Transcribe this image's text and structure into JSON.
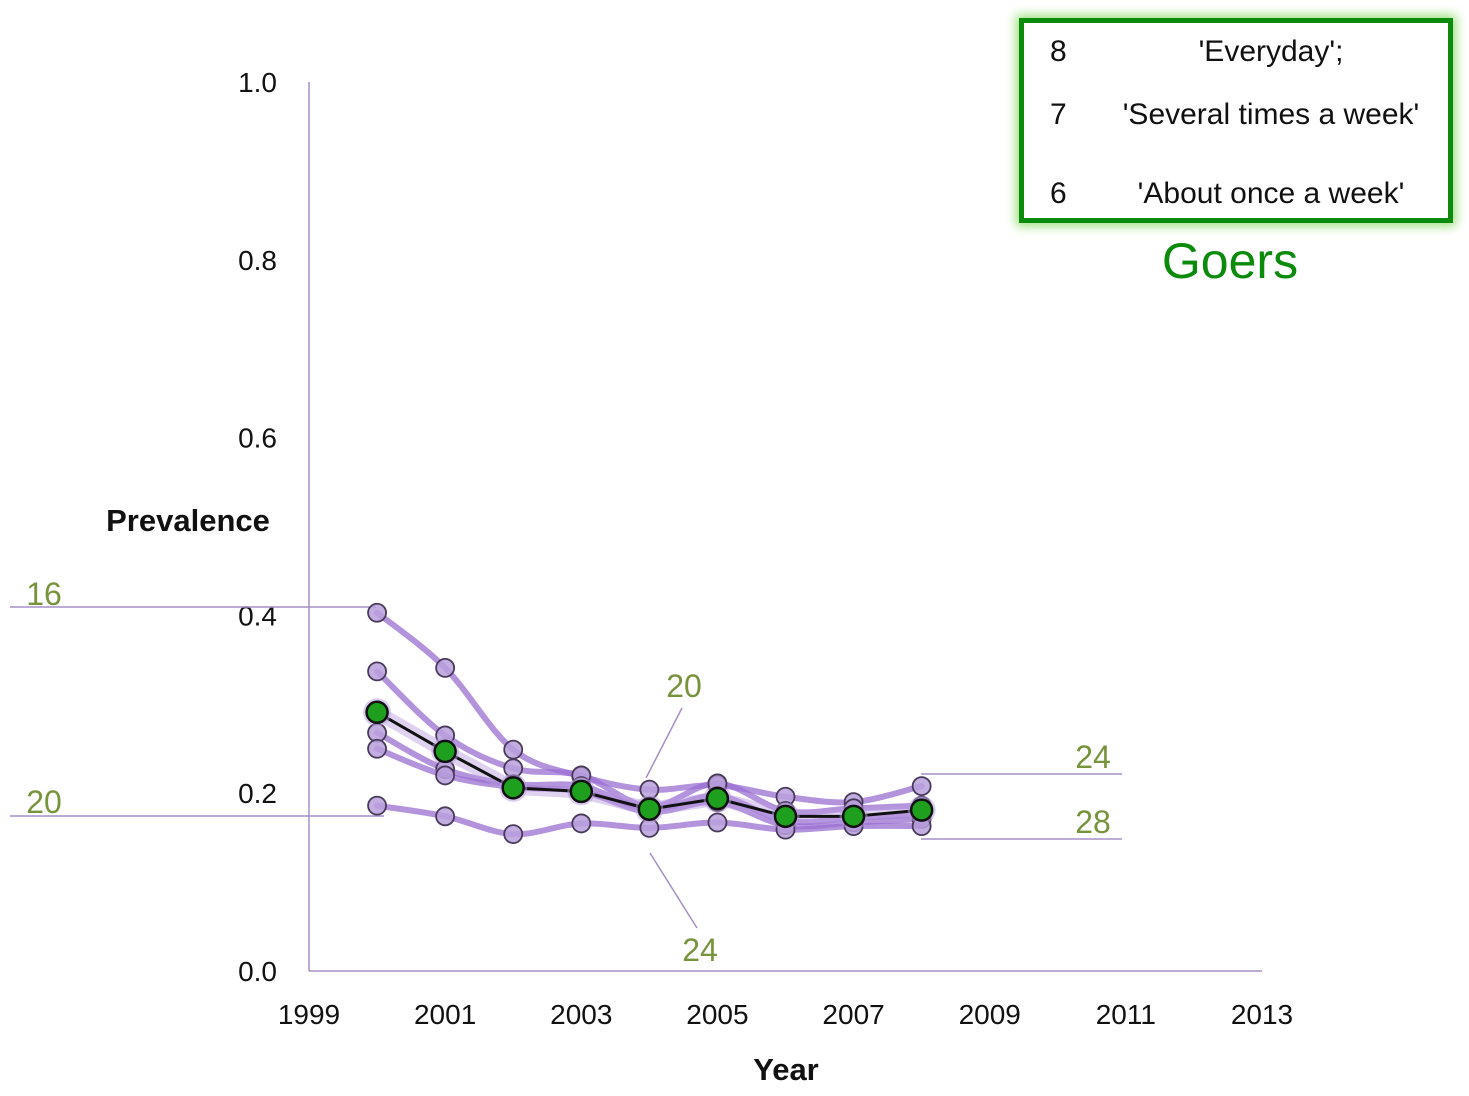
{
  "legend": {
    "items": [
      {
        "code": "8",
        "label": "'Everyday';"
      },
      {
        "code": "7",
        "label": "'Several times a week'"
      },
      {
        "code": "6",
        "label": "'About once a week'"
      }
    ],
    "title": "Goers",
    "border_color": "#0b8a0b"
  },
  "chart_data": {
    "type": "line",
    "xlabel": "Year",
    "ylabel": "Prevalence",
    "xlim": [
      1999,
      2013
    ],
    "ylim": [
      0.0,
      1.0
    ],
    "x_ticks": [
      "1999",
      "2001",
      "2003",
      "2005",
      "2007",
      "2009",
      "2011",
      "2013"
    ],
    "y_ticks": [
      "0.0",
      "0.2",
      "0.4",
      "0.6",
      "0.8",
      "1.0"
    ],
    "x": [
      2000,
      2001,
      2002,
      2003,
      2004,
      2005,
      2006,
      2007,
      2008
    ],
    "series": [
      {
        "values": [
          0.403,
          0.341,
          0.249,
          0.219,
          0.204,
          0.209,
          0.196,
          0.19,
          0.208
        ],
        "color": "#9b6fd1"
      },
      {
        "values": [
          0.337,
          0.265,
          0.228,
          0.22,
          0.185,
          0.211,
          0.18,
          0.183,
          0.186
        ],
        "color": "#9b6fd1"
      },
      {
        "values": [
          0.268,
          0.227,
          0.21,
          0.208,
          0.182,
          0.197,
          0.169,
          0.172,
          0.176
        ],
        "color": "#9b6fd1"
      },
      {
        "values": [
          0.25,
          0.22,
          0.207,
          0.202,
          0.179,
          0.19,
          0.164,
          0.167,
          0.171
        ],
        "color": "#9b6fd1"
      },
      {
        "values": [
          0.186,
          0.174,
          0.154,
          0.166,
          0.161,
          0.167,
          0.159,
          0.163,
          0.163
        ],
        "color": "#9b6fd1"
      },
      {
        "values": [
          0.291,
          0.247,
          0.206,
          0.202,
          0.182,
          0.194,
          0.174,
          0.174,
          0.181
        ],
        "color": "#111111",
        "marker_color": "#1ea01e"
      }
    ],
    "annotations": [
      {
        "text": "16",
        "color": "#77933c"
      },
      {
        "text": "20",
        "color": "#77933c"
      },
      {
        "text": "20",
        "color": "#77933c"
      },
      {
        "text": "24",
        "color": "#77933c"
      },
      {
        "text": "24",
        "color": "#77933c"
      },
      {
        "text": "28",
        "color": "#77933c"
      }
    ]
  }
}
